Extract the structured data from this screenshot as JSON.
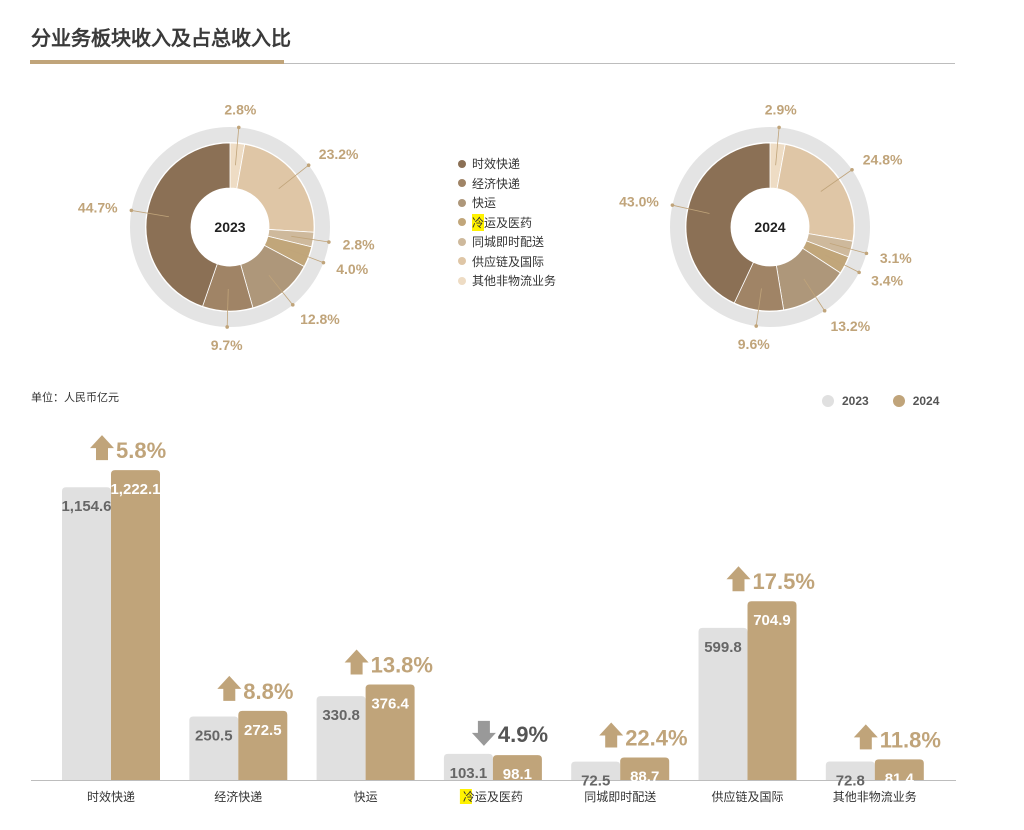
{
  "header": {
    "title": "分业务板块收入及占总收入比"
  },
  "unit": "单位：人民币亿元",
  "colors": {
    "accent": "#c0a47a",
    "bar_2023": "#e0e0e0",
    "bar_2024": "#c0a47a",
    "donut_ring": "#e4e4e4",
    "growth_up": "#c0a47a",
    "growth_down": "#999999"
  },
  "segments": [
    {
      "name": "时效快递",
      "color": "#8b7055"
    },
    {
      "name": "经济快递",
      "color": "#a08466"
    },
    {
      "name": "快运",
      "color": "#ae977a"
    },
    {
      "name": "冷",
      "name_rest": "运及医药",
      "color": "#c1a67a"
    },
    {
      "name": "同城即时配送",
      "color": "#ceb99c"
    },
    {
      "name": "供应链及国际",
      "color": "#dfc6a6"
    },
    {
      "name": "其他非物流业务",
      "color": "#eedcc4"
    }
  ],
  "chart_data": [
    {
      "type": "pie",
      "year": "2023",
      "categories": [
        "时效快递",
        "经济快递",
        "快运",
        "冷运及医药",
        "同城即时配送",
        "供应链及国际",
        "其他非物流业务"
      ],
      "values": [
        44.7,
        9.7,
        12.8,
        4.0,
        2.8,
        23.2,
        2.8
      ],
      "labels": [
        "44.7%",
        "9.7%",
        "12.8%",
        "4.0%",
        "2.8%",
        "23.2%",
        "2.8%"
      ]
    },
    {
      "type": "pie",
      "year": "2024",
      "categories": [
        "时效快递",
        "经济快递",
        "快运",
        "冷运及医药",
        "同城即时配送",
        "供应链及国际",
        "其他非物流业务"
      ],
      "values": [
        43.0,
        9.6,
        13.2,
        3.4,
        3.1,
        24.8,
        2.9
      ],
      "labels": [
        "43.0%",
        "9.6%",
        "13.2%",
        "3.4%",
        "3.1%",
        "24.8%",
        "2.9%"
      ]
    },
    {
      "type": "bar",
      "categories": [
        "时效快递",
        "经济快递",
        "快运",
        "冷运及医药",
        "同城即时配送",
        "供应链及国际",
        "其他非物流业务"
      ],
      "series": [
        {
          "name": "2023",
          "values": [
            1154.6,
            250.5,
            330.8,
            103.1,
            72.5,
            599.8,
            72.8
          ],
          "labels": [
            "1,154.6",
            "250.5",
            "330.8",
            "103.1",
            "72.5",
            "599.8",
            "72.8"
          ]
        },
        {
          "name": "2024",
          "values": [
            1222.1,
            272.5,
            376.4,
            98.1,
            88.7,
            704.9,
            81.4
          ],
          "labels": [
            "1,222.1",
            "272.5",
            "376.4",
            "98.1",
            "88.7",
            "704.9",
            "81.4"
          ]
        }
      ],
      "growth": [
        {
          "value": "5.8%",
          "direction": "up"
        },
        {
          "value": "8.8%",
          "direction": "up"
        },
        {
          "value": "13.8%",
          "direction": "up"
        },
        {
          "value": "4.9%",
          "direction": "down"
        },
        {
          "value": "22.4%",
          "direction": "up"
        },
        {
          "value": "17.5%",
          "direction": "up"
        },
        {
          "value": "11.8%",
          "direction": "up"
        }
      ],
      "ylim": [
        0,
        1250
      ]
    }
  ]
}
